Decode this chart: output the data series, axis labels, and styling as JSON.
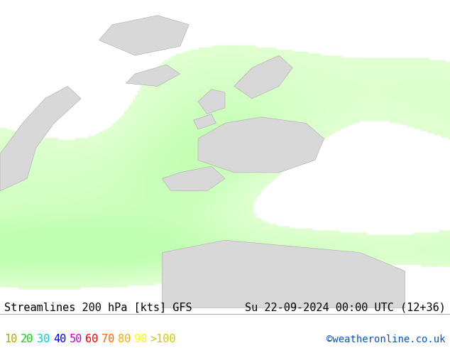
{
  "title_left": "Streamlines 200 hPa [kts] GFS",
  "title_right": "Su 22-09-2024 00:00 UTC (12+36)",
  "credit": "©weatheronline.co.uk",
  "legend_values": [
    "10",
    "20",
    "30",
    "40",
    "50",
    "60",
    "70",
    "80",
    "90",
    ">100"
  ],
  "legend_colors": [
    "#aaaa00",
    "#00dd00",
    "#00cccc",
    "#0000ff",
    "#cc00cc",
    "#ff0000",
    "#ff6600",
    "#ffaa00",
    "#ffff00",
    "#ffffff"
  ],
  "bg_color": "#ffffff",
  "map_bg_ocean": "#f0f0f0",
  "map_bg_green": "#ccffaa",
  "land_color": "#d8d8d8",
  "text_color": "#000000",
  "font_size_title": 11,
  "font_size_legend": 11,
  "font_size_credit": 10,
  "figwidth": 6.34,
  "figheight": 4.9,
  "dpi": 100
}
